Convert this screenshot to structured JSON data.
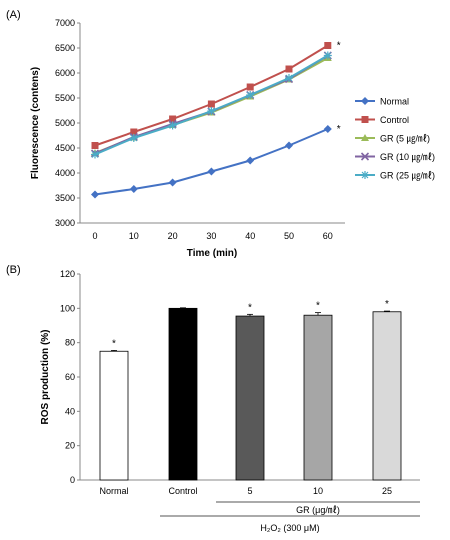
{
  "panel_labels": [
    "(A)",
    "(B)"
  ],
  "chart_data": [
    {
      "type": "line",
      "x": [
        0,
        10,
        20,
        30,
        40,
        50,
        60
      ],
      "xlabel": "Time (min)",
      "ylabel": "Fluorescence (contens)",
      "ylim": [
        3000,
        7000
      ],
      "yticks": [
        3000,
        3500,
        4000,
        4500,
        5000,
        5500,
        6000,
        6500,
        7000
      ],
      "grid": false,
      "legend_position": "right",
      "series": [
        {
          "name": "Normal",
          "marker": "diamond",
          "color": "#4472c4",
          "values": [
            3570,
            3680,
            3810,
            4030,
            4250,
            4550,
            4880
          ]
        },
        {
          "name": "Control",
          "marker": "square",
          "color": "#c0504d",
          "values": [
            4550,
            4820,
            5080,
            5380,
            5720,
            6080,
            6550
          ]
        },
        {
          "name": "GR (5 ㎍/㎖)",
          "marker": "triangle",
          "color": "#9bbb59",
          "values": [
            4400,
            4710,
            4960,
            5210,
            5530,
            5870,
            6300
          ]
        },
        {
          "name": "GR (10 ㎍/㎖)",
          "marker": "x",
          "color": "#8064a2",
          "values": [
            4390,
            4720,
            4980,
            5230,
            5560,
            5880,
            6350
          ]
        },
        {
          "name": "GR (25 ㎍/㎖)",
          "marker": "star",
          "color": "#4bacc6",
          "values": [
            4370,
            4700,
            4950,
            5240,
            5560,
            5900,
            6350
          ]
        }
      ],
      "annotations": [
        {
          "text": "*",
          "series": "Control",
          "x": 60
        },
        {
          "text": "*",
          "series": "Normal",
          "x": 60
        }
      ]
    },
    {
      "type": "bar",
      "categories": [
        "Normal",
        "Control",
        "5",
        "10",
        "25"
      ],
      "values": [
        75,
        100,
        95.5,
        96,
        98
      ],
      "errors": [
        0.5,
        0.3,
        1.0,
        1.5,
        0.4
      ],
      "colors": [
        "#ffffff",
        "#000000",
        "#595959",
        "#a6a6a6",
        "#d9d9d9"
      ],
      "significance": [
        "*",
        "",
        "*",
        "*",
        "*"
      ],
      "ylabel": "ROS production (%)",
      "ylim": [
        0,
        120
      ],
      "yticks": [
        0,
        20,
        40,
        60,
        80,
        100,
        120
      ],
      "group_label": "GR (μg/㎖)",
      "treatment_label": "H₂O₂ (300 μM)"
    }
  ]
}
